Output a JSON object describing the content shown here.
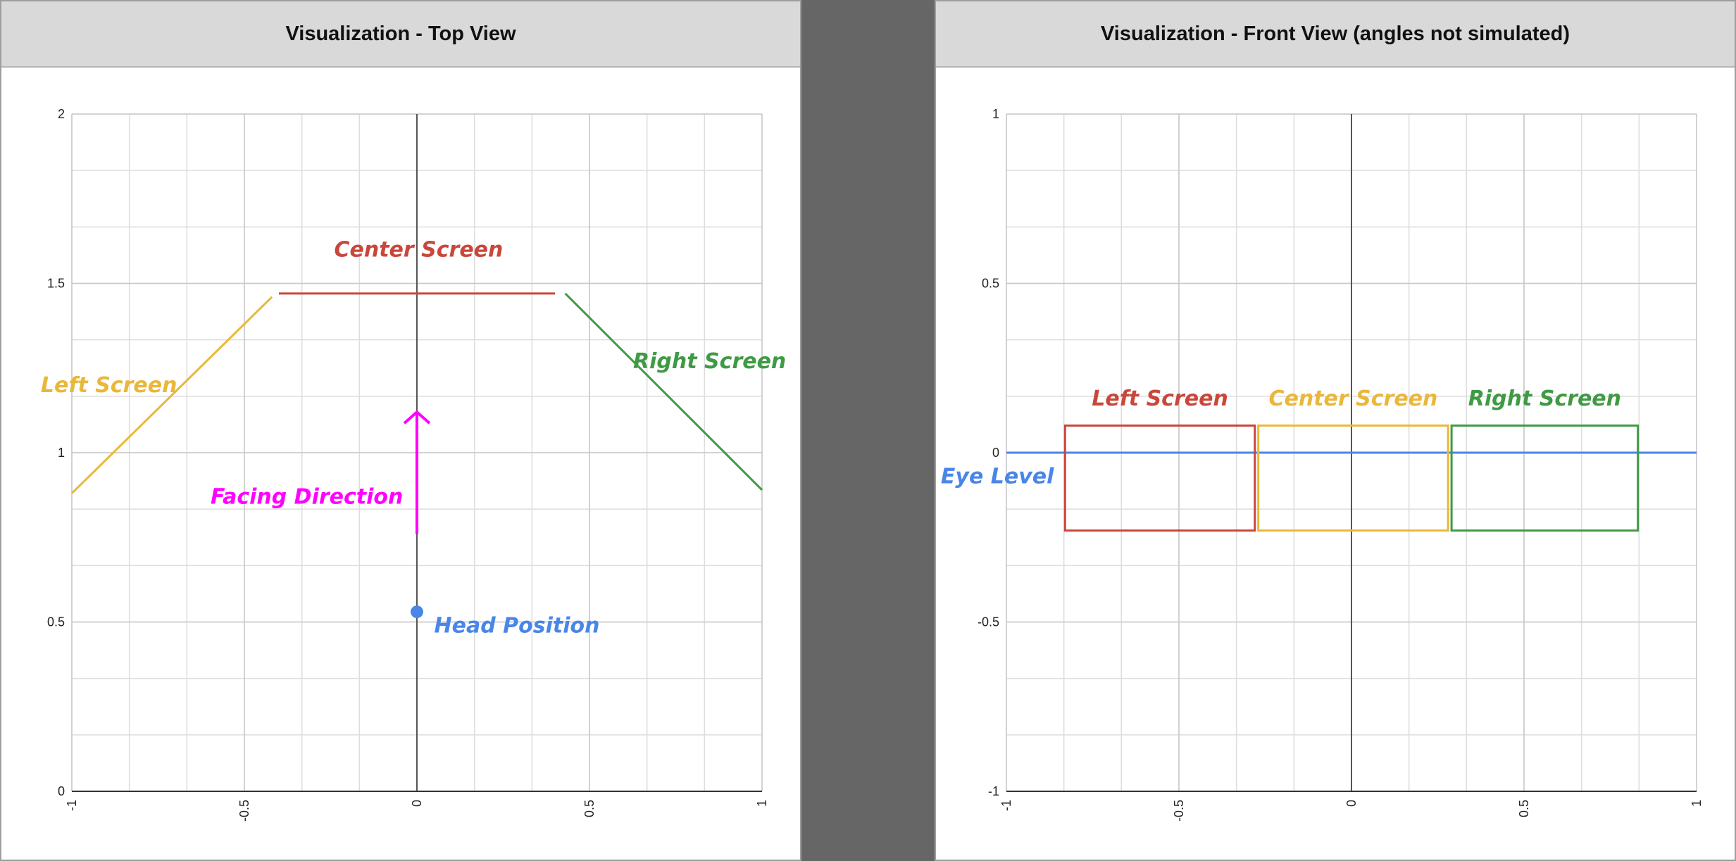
{
  "panels": {
    "left_title": "Visualization - Top View",
    "right_title": "Visualization - Front View (angles not simulated)"
  },
  "colors": {
    "red": "#c9473a",
    "yellow": "#eab73a",
    "green": "#3f9a44",
    "blue": "#4a86e8",
    "magenta": "#ff00ff",
    "grid": "#dddddd",
    "axis": "#555555"
  },
  "chart_data": [
    {
      "type": "line",
      "xlim": [
        -1,
        1
      ],
      "ylim": [
        0,
        2
      ],
      "x_ticks": [
        "-1",
        "-0.5",
        "0",
        "0.5",
        "1"
      ],
      "y_ticks": [
        "0",
        "0.5",
        "1",
        "1.5",
        "2"
      ],
      "grid": true,
      "series": [
        {
          "name": "Center Screen",
          "color": "#c9473a",
          "x": [
            -0.4,
            0.4
          ],
          "y": [
            1.47,
            1.47
          ]
        },
        {
          "name": "Left Screen",
          "color": "#eab73a",
          "x": [
            -1,
            -0.42
          ],
          "y": [
            0.88,
            1.46
          ]
        },
        {
          "name": "Right Screen",
          "color": "#3f9a44",
          "x": [
            0.43,
            1
          ],
          "y": [
            1.47,
            0.89
          ]
        },
        {
          "name": "Head Position",
          "color": "#4a86e8",
          "x": [
            0
          ],
          "y": [
            0.53
          ]
        },
        {
          "name": "Facing Direction",
          "color": "#ff00ff",
          "x": [
            0,
            0
          ],
          "y": [
            0.76,
            1.12
          ]
        }
      ]
    },
    {
      "type": "line",
      "xlim": [
        -1,
        1
      ],
      "ylim": [
        -1,
        1
      ],
      "x_ticks": [
        "-1",
        "-0.5",
        "0",
        "0.5",
        "1"
      ],
      "y_ticks": [
        "-1",
        "-0.5",
        "0",
        "0.5",
        "1"
      ],
      "grid": true,
      "series": [
        {
          "name": "Left Screen",
          "color": "#c9473a",
          "rect": [
            -0.83,
            -0.23,
            -0.28,
            0.08
          ]
        },
        {
          "name": "Center Screen",
          "color": "#eab73a",
          "rect": [
            -0.27,
            -0.23,
            0.28,
            0.08
          ]
        },
        {
          "name": "Right Screen",
          "color": "#3f9a44",
          "rect": [
            0.29,
            -0.23,
            0.83,
            0.08
          ]
        },
        {
          "name": "Eye Level",
          "color": "#4a86e8",
          "x": [
            -1,
            1
          ],
          "y": [
            0,
            0
          ]
        }
      ]
    }
  ]
}
